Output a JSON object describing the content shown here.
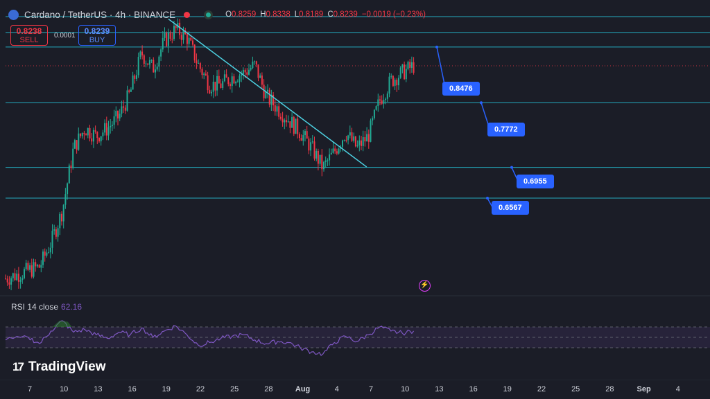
{
  "header": {
    "title": "Cardano / TetherUS · 4h · BINANCE",
    "ohlc": [
      {
        "label": "O",
        "value": "0.8259"
      },
      {
        "label": "H",
        "value": "0.8338"
      },
      {
        "label": "L",
        "value": "0.8189"
      },
      {
        "label": "C",
        "value": "0.8239"
      }
    ],
    "change": "−0.0019 (−0.23%)"
  },
  "trade": {
    "sell_price": "0.8238",
    "sell_label": "SELL",
    "spread": "0.0001",
    "buy_price": "0.8239",
    "buy_label": "BUY"
  },
  "indicator": {
    "name": "RSI 14 close",
    "value": "62.16"
  },
  "branding": {
    "logo_text": "TradingView",
    "logo_mark": "17"
  },
  "colors": {
    "background": "#1b1d27",
    "up": "#22ab94",
    "down": "#f23645",
    "horizontal_level": "#26c6da",
    "trendline": "#4dd0e1",
    "rsi_line": "#7e57c2",
    "rsi_band": "#2a2540",
    "callout": "#2962ff"
  },
  "chart_data": {
    "type": "candlestick",
    "symbol": "Cardano / TetherUS",
    "timeframe": "4h",
    "exchange": "BINANCE",
    "ylim": [
      0.535,
      0.9
    ],
    "levels": [
      {
        "price": 0.8476,
        "label": "0.8476"
      },
      {
        "price": 0.7772,
        "label": "0.7772"
      },
      {
        "price": 0.6955,
        "label": "0.6955"
      },
      {
        "price": 0.6567,
        "label": "0.6567"
      },
      {
        "price": 0.886,
        "label": ""
      },
      {
        "price": 0.866,
        "label": ""
      }
    ],
    "current_price": 0.8239,
    "trendline": {
      "from": {
        "date": "Jul 20",
        "price": 0.883
      },
      "to": {
        "date": "Aug 6",
        "price": 0.696
      }
    },
    "price_path": [
      {
        "date": "Jul 6",
        "close": 0.555
      },
      {
        "date": "Jul 8",
        "close": 0.565
      },
      {
        "date": "Jul 9",
        "close": 0.57
      },
      {
        "date": "Jul 10",
        "close": 0.6
      },
      {
        "date": "Jul 11",
        "close": 0.64
      },
      {
        "date": "Jul 12",
        "close": 0.72
      },
      {
        "date": "Jul 13",
        "close": 0.745
      },
      {
        "date": "Jul 14",
        "close": 0.735
      },
      {
        "date": "Jul 15",
        "close": 0.745
      },
      {
        "date": "Jul 16",
        "close": 0.76
      },
      {
        "date": "Jul 17",
        "close": 0.79
      },
      {
        "date": "Jul 18",
        "close": 0.84
      },
      {
        "date": "Jul 19",
        "close": 0.82
      },
      {
        "date": "Jul 20",
        "close": 0.855
      },
      {
        "date": "Jul 21",
        "close": 0.87
      },
      {
        "date": "Jul 22",
        "close": 0.86
      },
      {
        "date": "Jul 23",
        "close": 0.825
      },
      {
        "date": "Jul 24",
        "close": 0.8
      },
      {
        "date": "Jul 25",
        "close": 0.8
      },
      {
        "date": "Jul 26",
        "close": 0.81
      },
      {
        "date": "Jul 27",
        "close": 0.815
      },
      {
        "date": "Jul 28",
        "close": 0.825
      },
      {
        "date": "Jul 29",
        "close": 0.785
      },
      {
        "date": "Jul 30",
        "close": 0.77
      },
      {
        "date": "Jul 31",
        "close": 0.755
      },
      {
        "date": "Aug 1",
        "close": 0.74
      },
      {
        "date": "Aug 2",
        "close": 0.72
      },
      {
        "date": "Aug 3",
        "close": 0.695
      },
      {
        "date": "Aug 4",
        "close": 0.715
      },
      {
        "date": "Aug 5",
        "close": 0.74
      },
      {
        "date": "Aug 6",
        "close": 0.72
      },
      {
        "date": "Aug 7",
        "close": 0.735
      },
      {
        "date": "Aug 8",
        "close": 0.78
      },
      {
        "date": "Aug 9",
        "close": 0.805
      },
      {
        "date": "Aug 10",
        "close": 0.815
      },
      {
        "date": "Aug 11",
        "close": 0.824
      }
    ],
    "rsi": {
      "ylim": [
        0,
        100
      ],
      "overbought": 70,
      "oversold": 30,
      "last": 62.16,
      "path": [
        {
          "date": "Jul 6",
          "value": 45
        },
        {
          "date": "Jul 8",
          "value": 50
        },
        {
          "date": "Jul 9",
          "value": 38
        },
        {
          "date": "Jul 10",
          "value": 62
        },
        {
          "date": "Jul 11",
          "value": 82
        },
        {
          "date": "Jul 12",
          "value": 60
        },
        {
          "date": "Jul 13",
          "value": 65
        },
        {
          "date": "Jul 14",
          "value": 55
        },
        {
          "date": "Jul 15",
          "value": 48
        },
        {
          "date": "Jul 16",
          "value": 60
        },
        {
          "date": "Jul 17",
          "value": 55
        },
        {
          "date": "Jul 18",
          "value": 68
        },
        {
          "date": "Jul 19",
          "value": 50
        },
        {
          "date": "Jul 20",
          "value": 62
        },
        {
          "date": "Jul 21",
          "value": 72
        },
        {
          "date": "Jul 22",
          "value": 55
        },
        {
          "date": "Jul 23",
          "value": 35
        },
        {
          "date": "Jul 24",
          "value": 40
        },
        {
          "date": "Jul 25",
          "value": 48
        },
        {
          "date": "Jul 26",
          "value": 52
        },
        {
          "date": "Jul 27",
          "value": 55
        },
        {
          "date": "Jul 28",
          "value": 45
        },
        {
          "date": "Jul 29",
          "value": 38
        },
        {
          "date": "Jul 30",
          "value": 42
        },
        {
          "date": "Jul 31",
          "value": 40
        },
        {
          "date": "Aug 1",
          "value": 30
        },
        {
          "date": "Aug 2",
          "value": 22
        },
        {
          "date": "Aug 3",
          "value": 18
        },
        {
          "date": "Aug 4",
          "value": 40
        },
        {
          "date": "Aug 5",
          "value": 52
        },
        {
          "date": "Aug 6",
          "value": 42
        },
        {
          "date": "Aug 7",
          "value": 55
        },
        {
          "date": "Aug 8",
          "value": 70
        },
        {
          "date": "Aug 9",
          "value": 62
        },
        {
          "date": "Aug 10",
          "value": 58
        },
        {
          "date": "Aug 11",
          "value": 62.16
        }
      ]
    },
    "x_ticks": [
      "7",
      "10",
      "13",
      "16",
      "19",
      "22",
      "25",
      "28",
      "Aug",
      "4",
      "7",
      "10",
      "13",
      "16",
      "19",
      "22",
      "25",
      "28",
      "Sep",
      "4"
    ]
  }
}
